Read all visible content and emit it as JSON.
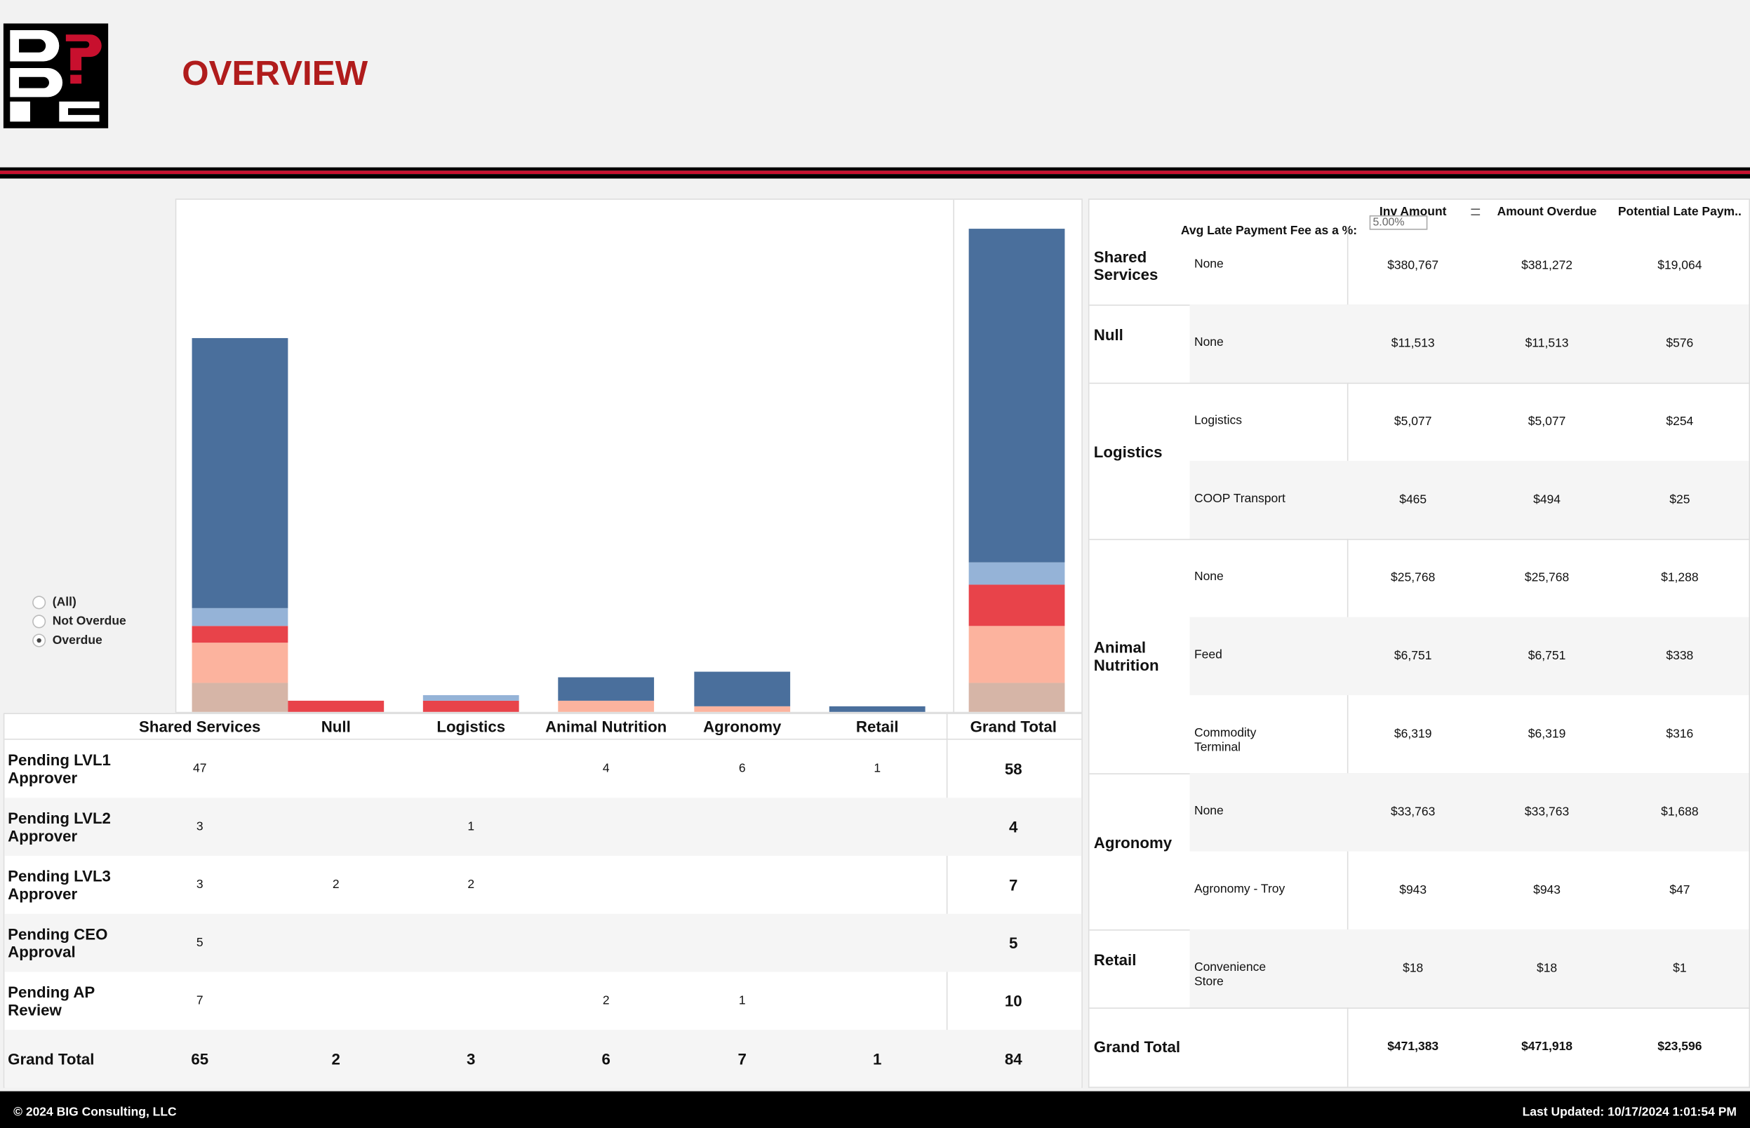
{
  "header": {
    "title": "OVERVIEW"
  },
  "filter": {
    "options": [
      "(All)",
      "Not Overdue",
      "Overdue"
    ],
    "selected": 2
  },
  "chart": {
    "type": "bar",
    "stacked": true
  },
  "status_table": {
    "columns": [
      "Shared Services",
      "Null",
      "Logistics",
      "Animal Nutrition",
      "Agronomy",
      "Retail",
      "Grand Total"
    ],
    "rows": [
      {
        "name": "Pending LVL1 Approver",
        "color": "#4a6f9c",
        "values": [
          47,
          null,
          null,
          4,
          6,
          1,
          58
        ]
      },
      {
        "name": "Pending LVL2 Approver",
        "color": "#95b3d7",
        "values": [
          3,
          null,
          1,
          null,
          null,
          null,
          4
        ]
      },
      {
        "name": "Pending LVL3 Approver",
        "color": "#e8434a",
        "values": [
          3,
          2,
          2,
          null,
          null,
          null,
          7
        ]
      },
      {
        "name": "Pending CEO Approval",
        "color": "#d6b5a7",
        "values": [
          5,
          null,
          null,
          null,
          null,
          null,
          5
        ]
      },
      {
        "name": "Pending AP Review",
        "color": "#fcb39e",
        "values": [
          7,
          null,
          null,
          2,
          1,
          null,
          10
        ]
      }
    ],
    "grand_total": {
      "name": "Grand Total",
      "values": [
        65,
        2,
        3,
        6,
        7,
        1,
        84
      ]
    }
  },
  "amount_table": {
    "parameter": {
      "label": "Avg Late Payment Fee as a %:",
      "value": "5.00%"
    },
    "columns": [
      "Inv Amount",
      "Amount Overdue",
      "Potential Late Paym.."
    ],
    "groups": [
      {
        "name": "Shared Services",
        "rows": [
          {
            "name": "None",
            "values": [
              "$380,767",
              "$381,272",
              "$19,064"
            ]
          }
        ]
      },
      {
        "name": "Null",
        "rows": [
          {
            "name": "None",
            "values": [
              "$11,513",
              "$11,513",
              "$576"
            ]
          }
        ]
      },
      {
        "name": "Logistics",
        "rows": [
          {
            "name": "Logistics",
            "values": [
              "$5,077",
              "$5,077",
              "$254"
            ]
          },
          {
            "name": "COOP Transport",
            "values": [
              "$465",
              "$494",
              "$25"
            ]
          }
        ]
      },
      {
        "name": "Animal Nutrition",
        "rows": [
          {
            "name": "None",
            "values": [
              "$25,768",
              "$25,768",
              "$1,288"
            ]
          },
          {
            "name": "Feed",
            "values": [
              "$6,751",
              "$6,751",
              "$338"
            ]
          },
          {
            "name": "Commodity Terminal",
            "values": [
              "$6,319",
              "$6,319",
              "$316"
            ]
          }
        ]
      },
      {
        "name": "Agronomy",
        "rows": [
          {
            "name": "None",
            "values": [
              "$33,763",
              "$33,763",
              "$1,688"
            ]
          },
          {
            "name": "Agronomy - Troy",
            "values": [
              "$943",
              "$943",
              "$47"
            ]
          }
        ]
      },
      {
        "name": "Retail",
        "rows": [
          {
            "name": "Convenience Store",
            "values": [
              "$18",
              "$18",
              "$1"
            ]
          }
        ]
      }
    ],
    "grand_total": {
      "name": "Grand Total",
      "values": [
        "$471,383",
        "$471,918",
        "$23,596"
      ]
    }
  },
  "footer": {
    "copyright": "© 2024 BIG Consulting, LLC",
    "updated": "Last Updated: 10/17/2024 1:01:54 PM"
  }
}
